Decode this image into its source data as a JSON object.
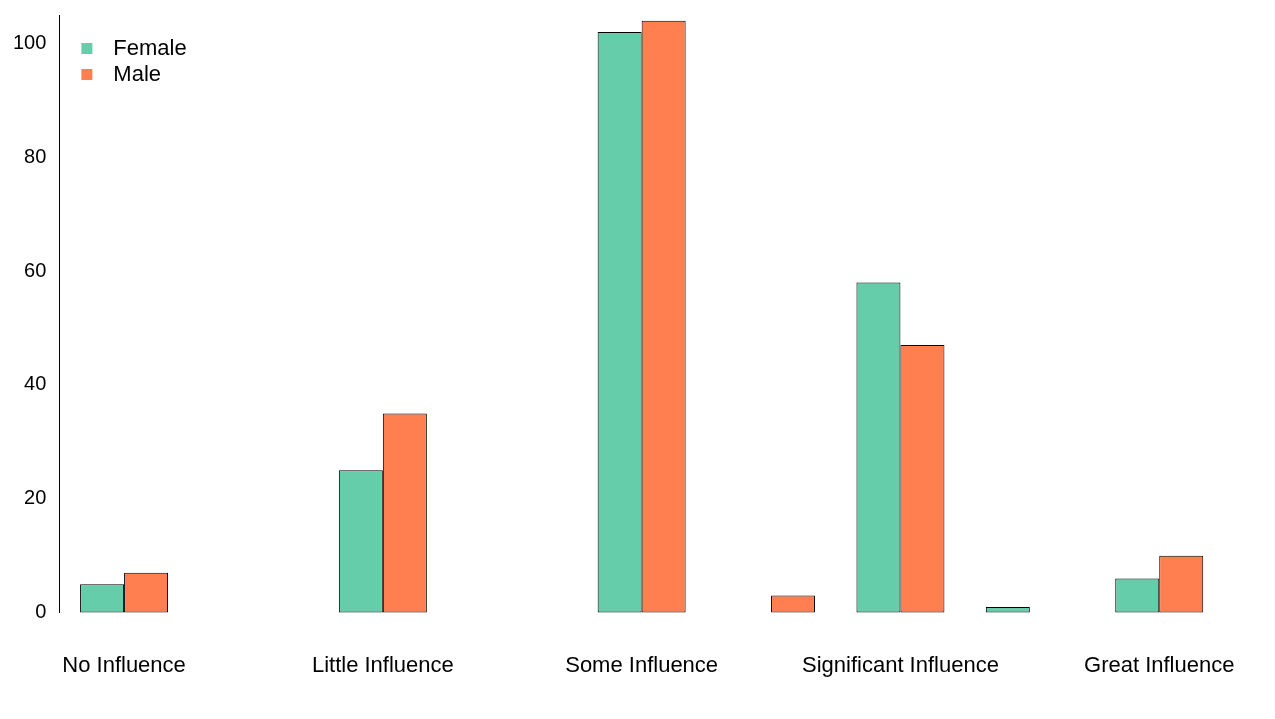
{
  "chart_data": {
    "type": "bar",
    "categories": [
      "No Influence",
      null,
      "Little Influence",
      null,
      "Some Influence",
      null,
      "Significant Influence",
      null,
      "Great Influence"
    ],
    "series": [
      {
        "name": "Female",
        "color": "#66cdaa",
        "values": [
          5,
          0,
          25,
          0,
          102,
          0,
          58,
          1,
          6
        ]
      },
      {
        "name": "Male",
        "color": "#ff7f50",
        "values": [
          7,
          0,
          35,
          0,
          104,
          3,
          47,
          0,
          10
        ]
      }
    ],
    "ylim": [
      0,
      105
    ],
    "yticks": [
      0,
      20,
      40,
      60,
      80,
      100
    ],
    "grid": false,
    "legend": "top left"
  }
}
